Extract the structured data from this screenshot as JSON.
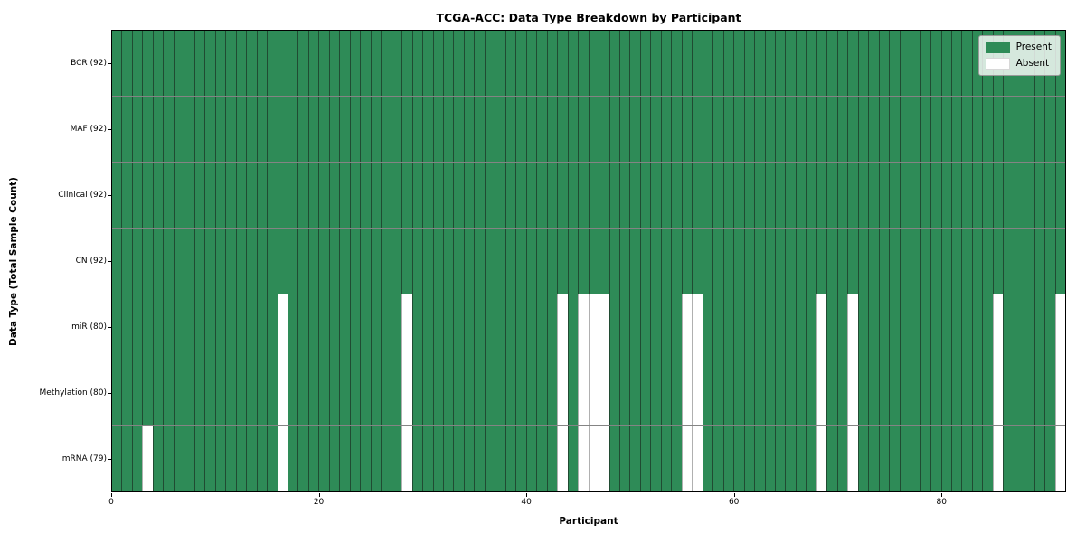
{
  "chart_data": {
    "type": "heatmap",
    "title": "TCGA-ACC: Data Type Breakdown by Participant",
    "xlabel": "Participant",
    "ylabel": "Data Type (Total Sample Count)",
    "n_participants": 92,
    "x_ticks": [
      0,
      20,
      40,
      60,
      80
    ],
    "present_color": "#2e8b57",
    "absent_color": "#ffffff",
    "legend": [
      {
        "label": "Present",
        "color": "#2e8b57"
      },
      {
        "label": "Absent",
        "color": "#ffffff"
      }
    ],
    "legend_position": "upper right",
    "rows": [
      {
        "label": "BCR (92)",
        "total": 92,
        "absent": []
      },
      {
        "label": "MAF (92)",
        "total": 92,
        "absent": []
      },
      {
        "label": "Clinical (92)",
        "total": 92,
        "absent": []
      },
      {
        "label": "CN (92)",
        "total": 92,
        "absent": []
      },
      {
        "label": "miR (80)",
        "total": 80,
        "absent": [
          16,
          28,
          43,
          45,
          46,
          47,
          55,
          56,
          68,
          71,
          85,
          91
        ]
      },
      {
        "label": "Methylation (80)",
        "total": 80,
        "absent": [
          16,
          28,
          43,
          45,
          46,
          47,
          55,
          56,
          68,
          71,
          85,
          91
        ]
      },
      {
        "label": "mRNA (79)",
        "total": 79,
        "absent": [
          3,
          16,
          28,
          43,
          45,
          46,
          47,
          55,
          56,
          68,
          71,
          85,
          91
        ]
      }
    ]
  }
}
